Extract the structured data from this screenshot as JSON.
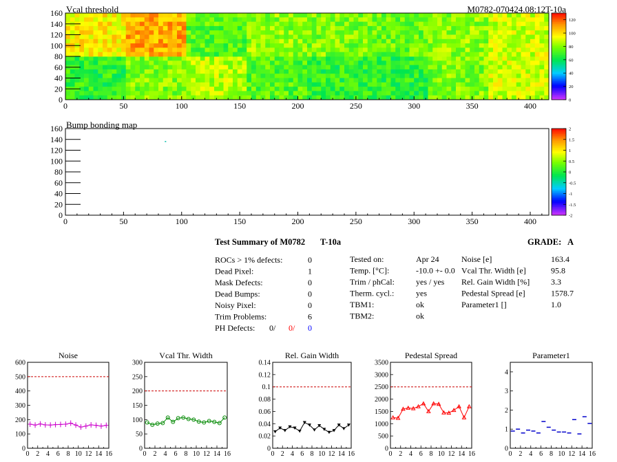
{
  "module_label": "M0782-070424.08:12T-10a",
  "maps": [
    {
      "title": "Vcal threshold",
      "type": "heatmap",
      "xlim": [
        0,
        416
      ],
      "ylim": [
        0,
        160
      ],
      "x_ticks": [
        0,
        50,
        100,
        150,
        200,
        250,
        300,
        350,
        400
      ],
      "y_ticks": [
        0,
        20,
        40,
        60,
        80,
        100,
        120,
        140,
        160
      ],
      "z_range": [
        0,
        130
      ],
      "z_ticks": [
        0,
        20,
        40,
        60,
        80,
        100,
        120
      ],
      "roc_grid": {
        "cols": 8,
        "rows": 2
      },
      "roc_mean_values": [
        [
          66,
          78,
          85,
          72,
          66,
          66,
          78,
          88
        ],
        [
          96,
          108,
          72,
          80,
          78,
          75,
          80,
          88
        ]
      ]
    },
    {
      "title": "Bump bonding map",
      "type": "heatmap",
      "xlim": [
        0,
        416
      ],
      "ylim": [
        0,
        160
      ],
      "x_ticks": [
        0,
        50,
        100,
        150,
        200,
        250,
        300,
        350,
        400
      ],
      "y_ticks": [
        0,
        20,
        40,
        60,
        80,
        100,
        120,
        140,
        160
      ],
      "z_range": [
        -2,
        2
      ],
      "z_ticks": [
        "-2",
        "-1.5",
        "-1",
        "-0.5",
        "0",
        "0.5",
        "1",
        "1.5",
        "2"
      ],
      "points": [
        {
          "x": 86,
          "y": 136
        }
      ]
    }
  ],
  "summary": {
    "title": "Test Summary of M0782",
    "tag": "T-10a",
    "grade_label": "GRADE:",
    "grade_value": "A",
    "defects": [
      {
        "label": "ROCs > 1% defects:",
        "value": "0"
      },
      {
        "label": "Dead Pixel:",
        "value": "1"
      },
      {
        "label": "Mask Defects:",
        "value": "0"
      },
      {
        "label": "Dead Bumps:",
        "value": "0"
      },
      {
        "label": "Noisy Pixel:",
        "value": "0"
      },
      {
        "label": "Trim Problems:",
        "value": "6"
      }
    ],
    "ph_defects": {
      "label": "PH Defects:",
      "v1": "0/",
      "v2": "0/",
      "v3": "0",
      "c2": "#ff0000",
      "c3": "#0000ff"
    },
    "conditions": [
      {
        "label": "Tested on:",
        "value": "Apr 24"
      },
      {
        "label": "Temp. [°C]:",
        "value": "-10.0 +- 0.0"
      },
      {
        "label": "Trim / phCal:",
        "value": "yes / yes"
      },
      {
        "label": "Therm. cycl.:",
        "value": "yes"
      },
      {
        "label": "TBM1:",
        "value": "ok"
      },
      {
        "label": "TBM2:",
        "value": "ok"
      }
    ],
    "results": [
      {
        "label": "Noise [e]",
        "value": "163.4"
      },
      {
        "label": "Vcal Thr. Width [e]",
        "value": "95.8"
      },
      {
        "label": "Rel. Gain Width [%]",
        "value": "3.3"
      },
      {
        "label": "Pedestal Spread [e]",
        "value": "1578.7"
      },
      {
        "label": "Parameter1 []",
        "value": "1.0"
      }
    ]
  },
  "chart_data": [
    {
      "type": "line",
      "title": "Noise",
      "x": [
        0,
        1,
        2,
        3,
        4,
        5,
        6,
        7,
        8,
        9,
        10,
        11,
        12,
        13,
        14,
        15
      ],
      "values": [
        168,
        162,
        170,
        163,
        162,
        165,
        166,
        168,
        175,
        162,
        148,
        155,
        163,
        160,
        155,
        160
      ],
      "xlim": [
        0,
        16
      ],
      "ylim": [
        0,
        600
      ],
      "x_ticks": [
        0,
        2,
        4,
        6,
        8,
        10,
        12,
        14,
        16
      ],
      "y_ticks": [
        0,
        100,
        200,
        300,
        400,
        500,
        600
      ],
      "limit": 500,
      "color": "#cc00cc",
      "marker": "cross"
    },
    {
      "type": "line",
      "title": "Vcal Thr. Width",
      "x": [
        0,
        1,
        2,
        3,
        4,
        5,
        6,
        7,
        8,
        9,
        10,
        11,
        12,
        13,
        14,
        15
      ],
      "values": [
        90,
        82,
        86,
        88,
        107,
        92,
        105,
        107,
        102,
        100,
        93,
        90,
        95,
        92,
        88,
        107
      ],
      "xlim": [
        0,
        16
      ],
      "ylim": [
        0,
        300
      ],
      "x_ticks": [
        0,
        2,
        4,
        6,
        8,
        10,
        12,
        14,
        16
      ],
      "y_ticks": [
        0,
        50,
        100,
        150,
        200,
        250,
        300
      ],
      "limit": 200,
      "color": "#008800",
      "marker": "circle"
    },
    {
      "type": "line",
      "title": "Rel. Gain Width",
      "x": [
        0,
        1,
        2,
        3,
        4,
        5,
        6,
        7,
        8,
        9,
        10,
        11,
        12,
        13,
        14,
        15
      ],
      "values": [
        0.027,
        0.033,
        0.029,
        0.035,
        0.033,
        0.028,
        0.042,
        0.038,
        0.03,
        0.037,
        0.031,
        0.026,
        0.029,
        0.038,
        0.032,
        0.038
      ],
      "xlim": [
        0,
        16
      ],
      "ylim": [
        0,
        0.14
      ],
      "x_ticks": [
        0,
        2,
        4,
        6,
        8,
        10,
        12,
        14,
        16
      ],
      "y_ticks": [
        "0",
        "0.02",
        "0.04",
        "0.06",
        "0.08",
        "0.1",
        "0.12",
        "0.14"
      ],
      "limit": 0.1,
      "color": "#000000",
      "marker": "triangle-down"
    },
    {
      "type": "line",
      "title": "Pedestal Spread",
      "x": [
        0,
        1,
        2,
        3,
        4,
        5,
        6,
        7,
        8,
        9,
        10,
        11,
        12,
        13,
        14,
        15
      ],
      "values": [
        1250,
        1230,
        1600,
        1640,
        1620,
        1700,
        1820,
        1500,
        1820,
        1800,
        1450,
        1440,
        1550,
        1700,
        1250,
        1700
      ],
      "xlim": [
        0,
        16
      ],
      "ylim": [
        0,
        3500
      ],
      "x_ticks": [
        0,
        2,
        4,
        6,
        8,
        10,
        12,
        14,
        16
      ],
      "y_ticks": [
        0,
        500,
        1000,
        1500,
        2000,
        2500,
        3000,
        3500
      ],
      "limit": 2500,
      "color": "#ff0000",
      "marker": "triangle-up"
    },
    {
      "type": "scatter",
      "title": "Parameter1",
      "x": [
        0,
        1,
        2,
        3,
        4,
        5,
        6,
        7,
        8,
        9,
        10,
        11,
        12,
        13,
        14,
        15
      ],
      "values": [
        0.9,
        1.0,
        0.8,
        0.95,
        0.9,
        0.8,
        1.4,
        1.1,
        0.95,
        0.85,
        0.85,
        0.8,
        1.5,
        0.75,
        1.65,
        1.3
      ],
      "xlim": [
        0,
        16
      ],
      "ylim": [
        0,
        4.5
      ],
      "x_ticks": [
        0,
        2,
        4,
        6,
        8,
        10,
        12,
        14,
        16
      ],
      "y_ticks": [
        0,
        1,
        2,
        3,
        4
      ],
      "limit": null,
      "color": "#0000cc",
      "marker": "dash"
    }
  ]
}
